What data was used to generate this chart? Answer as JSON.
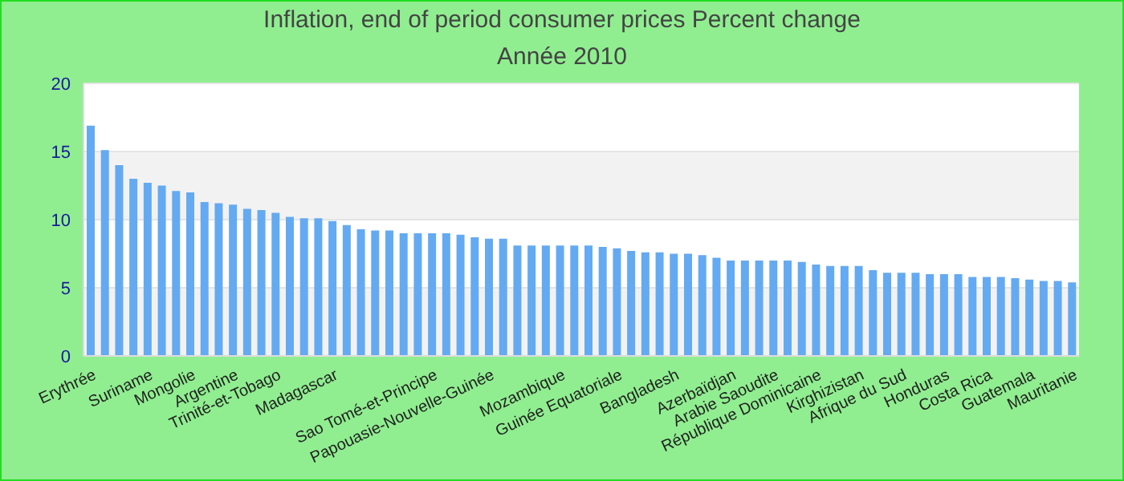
{
  "chart_data": {
    "type": "bar",
    "title": "Inflation, end of period consumer prices  Percent change",
    "subtitle": "Année 2010",
    "categories": [
      "Erythrée",
      null,
      null,
      null,
      "Suriname",
      null,
      null,
      "Mongolie",
      null,
      null,
      "Argentine",
      null,
      null,
      "Trinité-et-Tobago",
      null,
      null,
      null,
      "Madagascar",
      null,
      null,
      null,
      null,
      null,
      null,
      "Sao Tomé-et-Principe",
      null,
      null,
      null,
      "Papouasie-Nouvelle-Guinée",
      null,
      null,
      null,
      null,
      "Mozambique",
      null,
      null,
      null,
      "Guinée Equatoriale",
      null,
      null,
      null,
      "Bangladesh",
      null,
      null,
      null,
      "Azerbaïdjan",
      null,
      null,
      "Arabie Saoudite",
      null,
      null,
      "République Dominicaine",
      null,
      null,
      "Kirghizistan",
      null,
      null,
      "Afrique du Sud",
      null,
      null,
      "Honduras",
      null,
      null,
      "Costa Rica",
      null,
      null,
      "Guatemala",
      null,
      null,
      "Mauritanie"
    ],
    "values": [
      16.9,
      15.1,
      14.0,
      13.0,
      12.7,
      12.5,
      12.1,
      12.0,
      11.3,
      11.2,
      11.1,
      10.8,
      10.7,
      10.5,
      10.2,
      10.1,
      10.1,
      9.9,
      9.6,
      9.3,
      9.2,
      9.2,
      9.0,
      9.0,
      9.0,
      9.0,
      8.9,
      8.7,
      8.6,
      8.6,
      8.1,
      8.1,
      8.1,
      8.1,
      8.1,
      8.1,
      8.0,
      7.9,
      7.7,
      7.6,
      7.6,
      7.5,
      7.5,
      7.4,
      7.2,
      7.0,
      7.0,
      7.0,
      7.0,
      7.0,
      6.9,
      6.7,
      6.6,
      6.6,
      6.6,
      6.3,
      6.1,
      6.1,
      6.1,
      6.0,
      6.0,
      6.0,
      5.8,
      5.8,
      5.8,
      5.7,
      5.6,
      5.5,
      5.5,
      5.4
    ],
    "color": "#64aaf2",
    "ylim": [
      0,
      20
    ],
    "yticks": [
      0,
      5,
      10,
      15,
      20
    ],
    "grid": "y",
    "legend": false
  }
}
